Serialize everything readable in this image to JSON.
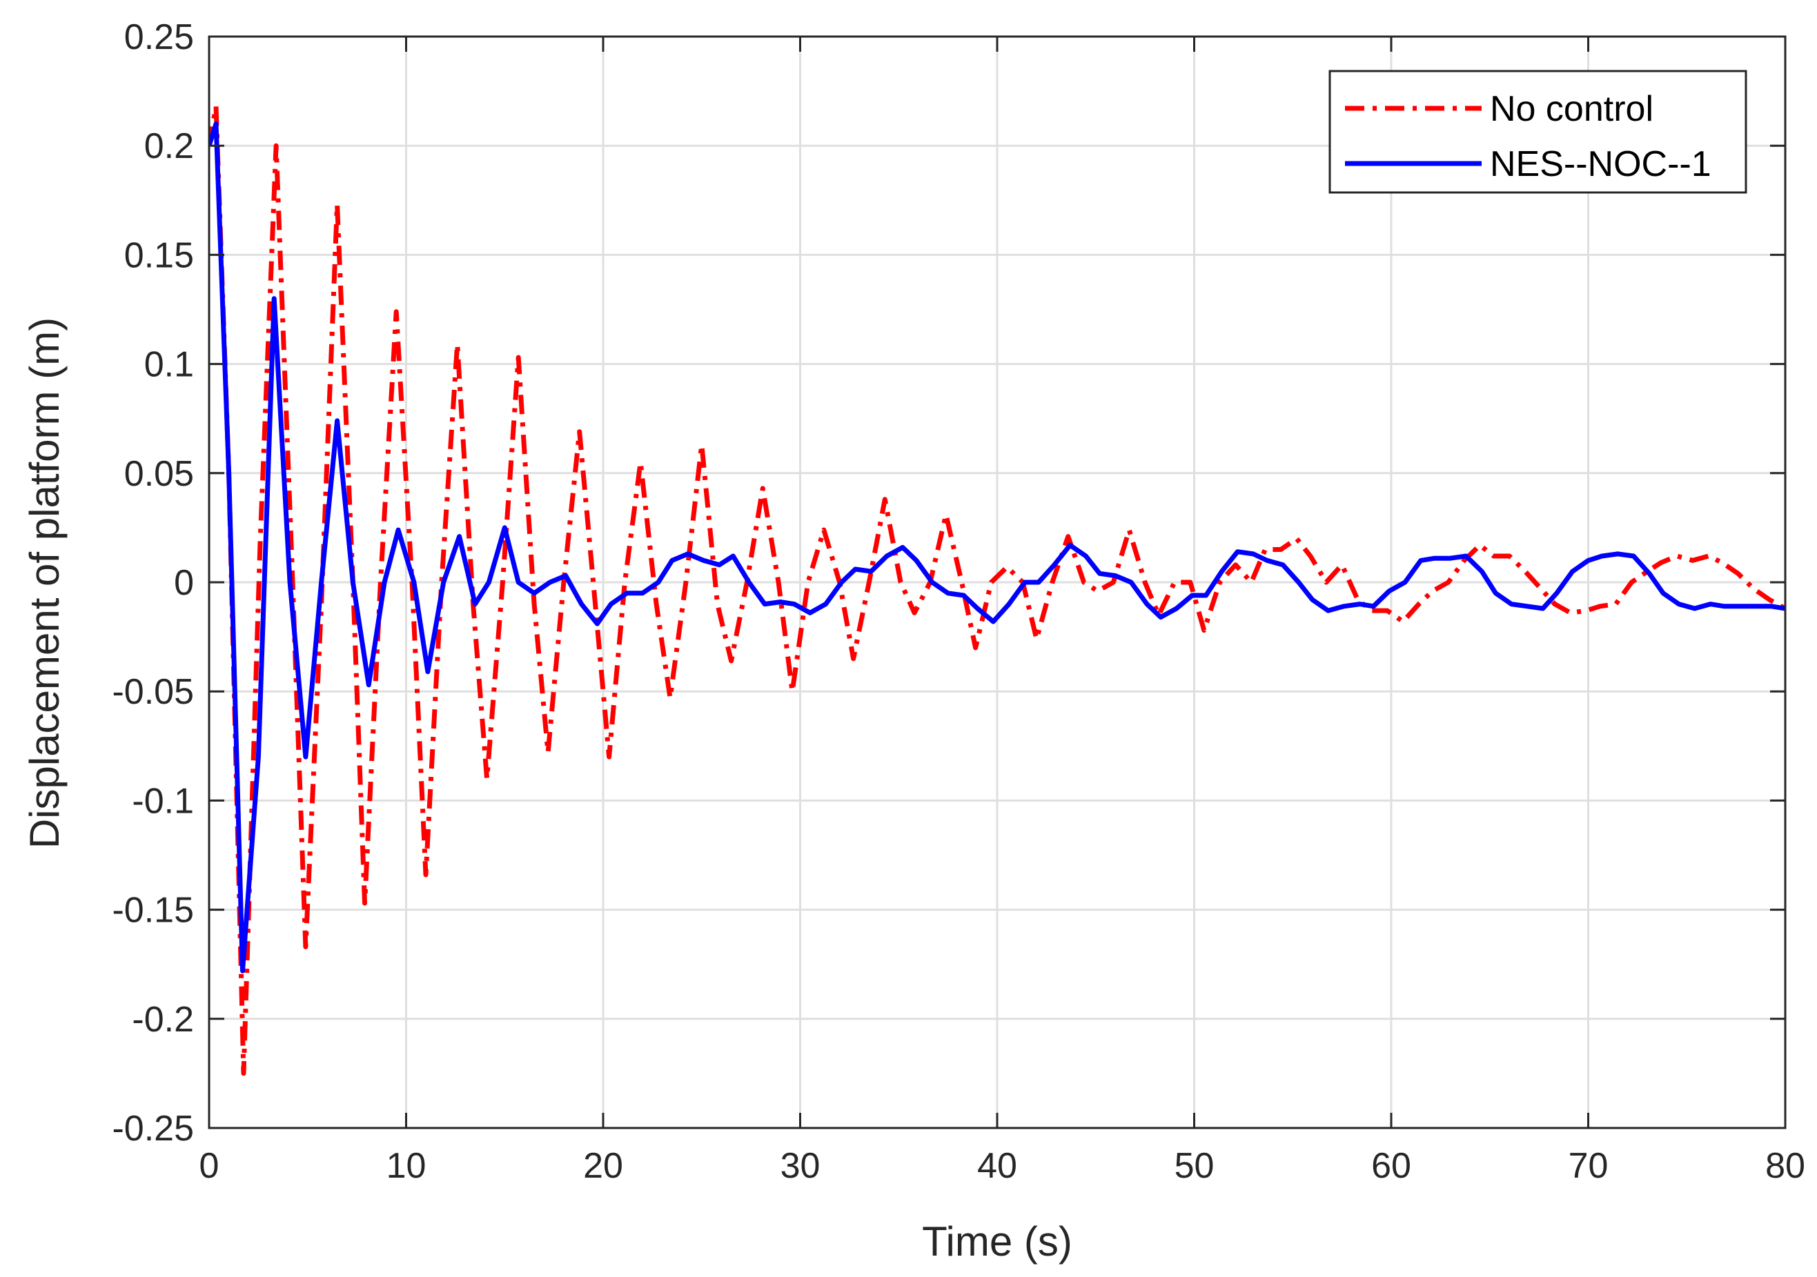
{
  "chart_data": {
    "type": "line",
    "title": "",
    "xlabel": "Time (s)",
    "ylabel": "Displacement of platform (m)",
    "xlim": [
      0,
      80
    ],
    "ylim": [
      -0.25,
      0.25
    ],
    "grid": true,
    "legend_position": "top-right",
    "x_ticks": [
      0,
      10,
      20,
      30,
      40,
      50,
      60,
      70,
      80
    ],
    "x_tick_labels": [
      "0",
      "10",
      "20",
      "30",
      "40",
      "50",
      "60",
      "70",
      "80"
    ],
    "y_ticks": [
      0.25,
      0.2,
      0.15,
      0.1,
      0.05,
      0,
      -0.05,
      -0.1,
      -0.15,
      -0.2,
      -0.25
    ],
    "y_tick_labels": [
      "0.25",
      "0.2",
      "0.15",
      "0.1",
      "0.05",
      "0",
      "-0.05",
      "-0.1",
      "-0.15",
      "-0.2",
      "-0.25"
    ],
    "series": [
      {
        "name": "No control",
        "color": "#ff0000",
        "style": "dash-dot",
        "x": [
          0,
          0.35,
          1.0,
          1.75,
          2.6,
          3.4,
          4.2,
          4.9,
          5.7,
          6.5,
          7.3,
          7.9,
          8.7,
          9.5,
          10.3,
          11.0,
          11.8,
          12.6,
          13.4,
          14.1,
          14.9,
          15.7,
          16.5,
          17.2,
          18.0,
          18.8,
          19.6,
          20.3,
          21.1,
          21.9,
          22.7,
          23.4,
          24.2,
          25.0,
          25.8,
          26.5,
          27.3,
          28.1,
          28.9,
          29.6,
          30.4,
          31.2,
          32.0,
          32.7,
          33.5,
          34.3,
          35.1,
          35.8,
          36.6,
          37.4,
          38.2,
          38.9,
          39.7,
          40.5,
          41.3,
          42.0,
          42.8,
          43.6,
          44.4,
          45.1,
          45.9,
          46.7,
          47.5,
          48.2,
          49.0,
          49.8,
          50.5,
          51.3,
          52.1,
          52.9,
          53.6,
          54.4,
          55.2,
          55.9,
          56.7,
          57.5,
          58.3,
          59.0,
          59.8,
          60.6,
          61.4,
          62.1,
          62.9,
          63.7,
          64.5,
          65.2,
          66.0,
          66.8,
          67.6,
          68.3,
          69.1,
          69.9,
          70.6,
          71.4,
          72.2,
          73.0,
          73.7,
          74.5,
          75.3,
          76.1,
          76.8,
          77.6,
          78.4,
          79.2,
          80.0
        ],
        "y": [
          0.2,
          0.218,
          0.05,
          -0.225,
          0.02,
          0.2,
          0.01,
          -0.167,
          -0.01,
          0.173,
          0.0,
          -0.147,
          0.0,
          0.124,
          0.0,
          -0.134,
          0.0,
          0.109,
          -0.01,
          -0.09,
          0.0,
          0.103,
          -0.01,
          -0.078,
          0.0,
          0.069,
          -0.01,
          -0.08,
          0.0,
          0.055,
          -0.01,
          -0.053,
          0.0,
          0.063,
          -0.01,
          -0.036,
          0.0,
          0.043,
          0.0,
          -0.05,
          0.0,
          0.024,
          0.0,
          -0.035,
          0.0,
          0.038,
          0.0,
          -0.014,
          0.0,
          0.031,
          0.0,
          -0.03,
          0.0,
          0.007,
          0.0,
          -0.026,
          0.0,
          0.021,
          0.0,
          -0.004,
          0.0,
          0.024,
          0.0,
          -0.015,
          0.0,
          0.0,
          -0.022,
          0.0,
          0.008,
          0.0,
          0.015,
          0.015,
          0.02,
          0.012,
          0.0,
          0.008,
          -0.008,
          -0.013,
          -0.013,
          -0.018,
          -0.01,
          -0.004,
          0.0,
          0.01,
          0.017,
          0.012,
          0.012,
          0.005,
          -0.003,
          -0.01,
          -0.014,
          -0.013,
          -0.011,
          -0.01,
          0.0,
          0.005,
          0.009,
          0.012,
          0.01,
          0.012,
          0.009,
          0.004,
          -0.003,
          -0.008,
          -0.012
        ]
      },
      {
        "name": "NES--NOC--1",
        "color": "#0000ff",
        "style": "solid",
        "x": [
          0,
          0.35,
          1.0,
          1.7,
          2.5,
          3.3,
          4.1,
          4.9,
          5.7,
          6.5,
          7.3,
          8.1,
          8.9,
          9.6,
          10.4,
          11.1,
          11.9,
          12.7,
          13.5,
          14.2,
          15.0,
          15.7,
          16.5,
          17.3,
          18.1,
          18.9,
          19.7,
          20.4,
          21.2,
          22.0,
          22.8,
          23.5,
          24.3,
          25.1,
          25.9,
          26.6,
          27.4,
          28.2,
          29.0,
          29.7,
          30.5,
          31.3,
          32.1,
          32.8,
          33.6,
          34.4,
          35.2,
          35.9,
          36.7,
          37.5,
          38.3,
          39.0,
          39.8,
          40.6,
          41.4,
          42.1,
          42.9,
          43.7,
          44.5,
          45.2,
          46.0,
          46.8,
          47.6,
          48.3,
          49.1,
          49.9,
          50.6,
          51.4,
          52.2,
          53.0,
          53.7,
          54.5,
          55.3,
          56.0,
          56.8,
          57.6,
          58.4,
          59.1,
          59.9,
          60.7,
          61.5,
          62.2,
          63.0,
          63.8,
          64.6,
          65.3,
          66.1,
          66.9,
          67.7,
          68.4,
          69.2,
          70.0,
          70.7,
          71.5,
          72.3,
          73.1,
          73.8,
          74.6,
          75.4,
          76.2,
          76.9,
          77.7,
          78.5,
          79.3,
          80.0
        ],
        "y": [
          0.2,
          0.21,
          0.05,
          -0.178,
          -0.08,
          0.13,
          0.0,
          -0.08,
          0.0,
          0.074,
          0.0,
          -0.047,
          0.0,
          0.024,
          0.0,
          -0.041,
          0.0,
          0.021,
          -0.01,
          0.0,
          0.025,
          0.0,
          -0.005,
          0.0,
          0.003,
          -0.01,
          -0.019,
          -0.01,
          -0.005,
          -0.005,
          0.0,
          0.01,
          0.013,
          0.01,
          0.008,
          0.012,
          0.0,
          -0.01,
          -0.009,
          -0.01,
          -0.014,
          -0.01,
          0.0,
          0.006,
          0.005,
          0.012,
          0.016,
          0.01,
          0.0,
          -0.005,
          -0.006,
          -0.012,
          -0.018,
          -0.01,
          0.0,
          0.0,
          0.008,
          0.017,
          0.012,
          0.004,
          0.003,
          0.0,
          -0.01,
          -0.016,
          -0.012,
          -0.006,
          -0.006,
          0.005,
          0.014,
          0.013,
          0.01,
          0.008,
          0.0,
          -0.008,
          -0.013,
          -0.011,
          -0.01,
          -0.011,
          -0.004,
          0.0,
          0.01,
          0.011,
          0.011,
          0.012,
          0.005,
          -0.005,
          -0.01,
          -0.011,
          -0.012,
          -0.005,
          0.005,
          0.01,
          0.012,
          0.013,
          0.012,
          0.004,
          -0.005,
          -0.01,
          -0.012,
          -0.01,
          -0.011,
          -0.011,
          -0.011,
          -0.011,
          -0.012
        ]
      }
    ]
  }
}
